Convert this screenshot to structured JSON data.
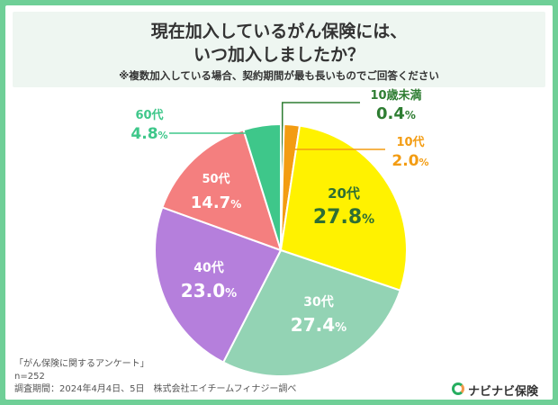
{
  "header": {
    "title_line1": "現在加入しているがん保険には、",
    "title_line2": "いつ加入しましたか？",
    "note": "※複数加入している場合、契約期間が最も長いものでご回答ください"
  },
  "chart_data": {
    "type": "pie",
    "title": "",
    "unit": "%",
    "slices": [
      {
        "label": "10歳未満",
        "value": 0.4,
        "color": "#2e7d32"
      },
      {
        "label": "10代",
        "value": 2.0,
        "color": "#f39c12"
      },
      {
        "label": "20代",
        "value": 27.8,
        "color": "#fff200"
      },
      {
        "label": "30代",
        "value": 27.4,
        "color": "#93d3b4"
      },
      {
        "label": "40代",
        "value": 23.0,
        "color": "#b57fdc"
      },
      {
        "label": "50代",
        "value": 14.7,
        "color": "#f47f7f"
      },
      {
        "label": "60代",
        "value": 4.8,
        "color": "#3ec78a"
      }
    ]
  },
  "footer": {
    "survey": "「がん保険に関するアンケート」",
    "n": "n=252",
    "period": "調査期間：2024年4月4日、5日　株式会社エイチームフィナジー調べ",
    "logo": "ナビナビ保険"
  },
  "colors": {
    "frame": "#6fcf97",
    "label_green": "#2e7d32",
    "label_orange": "#f39c12",
    "label_mint": "#3ec78a"
  }
}
